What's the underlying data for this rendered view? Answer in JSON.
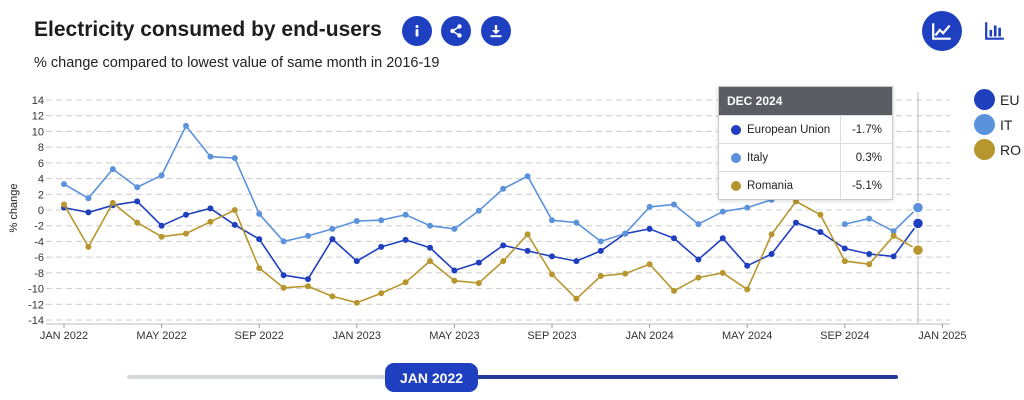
{
  "header": {
    "title": "Electricity consumed by end-users",
    "subtitle": "% change compared to lowest value of same month in 2016-19"
  },
  "toolbar": {
    "info_icon": "info-icon",
    "share_icon": "share-icon",
    "download_icon": "download-icon",
    "line_view_icon": "line-chart-icon",
    "bar_view_icon": "bar-chart-icon"
  },
  "colors": {
    "accent": "#1e3fbf",
    "EU": "#1f3fbf",
    "IT": "#5b92dc",
    "RO": "#b8962e",
    "grid": "#cccccc",
    "tooltip_header": "#5a5d63"
  },
  "chart_data": {
    "type": "line",
    "title": "Electricity consumed by end-users",
    "subtitle": "% change compared to lowest value of same month in 2016-19",
    "xlabel": "",
    "ylabel": "% change",
    "ylim": [
      -14,
      14
    ],
    "yticks": [
      14,
      12,
      10,
      8,
      6,
      4,
      2,
      0,
      -2,
      -4,
      -6,
      -8,
      -10,
      -12,
      -14
    ],
    "x": [
      "2022-01",
      "2022-02",
      "2022-03",
      "2022-04",
      "2022-05",
      "2022-06",
      "2022-07",
      "2022-08",
      "2022-09",
      "2022-10",
      "2022-11",
      "2022-12",
      "2023-01",
      "2023-02",
      "2023-03",
      "2023-04",
      "2023-05",
      "2023-06",
      "2023-07",
      "2023-08",
      "2023-09",
      "2023-10",
      "2023-11",
      "2023-12",
      "2024-01",
      "2024-02",
      "2024-03",
      "2024-04",
      "2024-05",
      "2024-06",
      "2024-07",
      "2024-08",
      "2024-09",
      "2024-10",
      "2024-11",
      "2024-12"
    ],
    "xtick_labels": [
      {
        "index": 0,
        "label": "JAN 2022"
      },
      {
        "index": 4,
        "label": "MAY 2022"
      },
      {
        "index": 8,
        "label": "SEP 2022"
      },
      {
        "index": 12,
        "label": "JAN 2023"
      },
      {
        "index": 16,
        "label": "MAY 2023"
      },
      {
        "index": 20,
        "label": "SEP 2023"
      },
      {
        "index": 24,
        "label": "JAN 2024"
      },
      {
        "index": 28,
        "label": "MAY 2024"
      },
      {
        "index": 32,
        "label": "SEP 2024"
      },
      {
        "index": 36,
        "label": "JAN 2025"
      }
    ],
    "series": [
      {
        "name": "EU",
        "full_name": "European Union",
        "color": "#1f3fbf",
        "values": [
          0.3,
          -0.3,
          0.6,
          1.1,
          -2.0,
          -0.6,
          0.2,
          -1.9,
          -3.7,
          -8.3,
          -8.8,
          -3.7,
          -6.5,
          -4.7,
          -3.8,
          -4.8,
          -7.7,
          -6.7,
          -4.5,
          -5.2,
          -5.9,
          -6.5,
          -5.2,
          -3.0,
          -2.4,
          -3.6,
          -6.3,
          -3.6,
          -7.1,
          -5.6,
          -1.6,
          -2.8,
          -4.9,
          -5.6,
          -5.9,
          -1.7
        ]
      },
      {
        "name": "IT",
        "full_name": "Italy",
        "color": "#5b92dc",
        "values": [
          3.3,
          1.5,
          5.2,
          2.9,
          4.4,
          10.7,
          6.8,
          6.6,
          -0.5,
          -4.0,
          -3.3,
          -2.4,
          -1.4,
          -1.3,
          -0.6,
          -2.0,
          -2.4,
          -0.1,
          2.7,
          4.3,
          -1.3,
          -1.6,
          -4.0,
          -3.0,
          0.4,
          0.7,
          -1.8,
          -0.2,
          0.3,
          1.3,
          null,
          null,
          -1.8,
          -1.1,
          -2.7,
          0.3
        ]
      },
      {
        "name": "RO",
        "full_name": "Romania",
        "color": "#b8962e",
        "values": [
          0.7,
          -4.7,
          0.9,
          -1.6,
          -3.4,
          -3.0,
          -1.5,
          0.0,
          -7.4,
          -9.9,
          -9.7,
          -11.0,
          -11.8,
          -10.6,
          -9.2,
          -6.5,
          -9.0,
          -9.3,
          -6.5,
          -3.1,
          -8.2,
          -11.3,
          -8.4,
          -8.1,
          -6.9,
          -10.3,
          -8.6,
          -8.0,
          -10.1,
          -3.1,
          1.1,
          -0.6,
          -6.5,
          -6.9,
          -3.3,
          -5.1
        ]
      }
    ],
    "legend": [
      "EU",
      "IT",
      "RO"
    ],
    "legend_position": "right",
    "grid": true
  },
  "tooltip": {
    "title": "DEC 2024",
    "rows": [
      {
        "name": "European Union",
        "value": "-1.7%"
      },
      {
        "name": "Italy",
        "value": "0.3%"
      },
      {
        "name": "Romania",
        "value": "-5.1%"
      }
    ]
  },
  "slider": {
    "label": "JAN 2022"
  }
}
